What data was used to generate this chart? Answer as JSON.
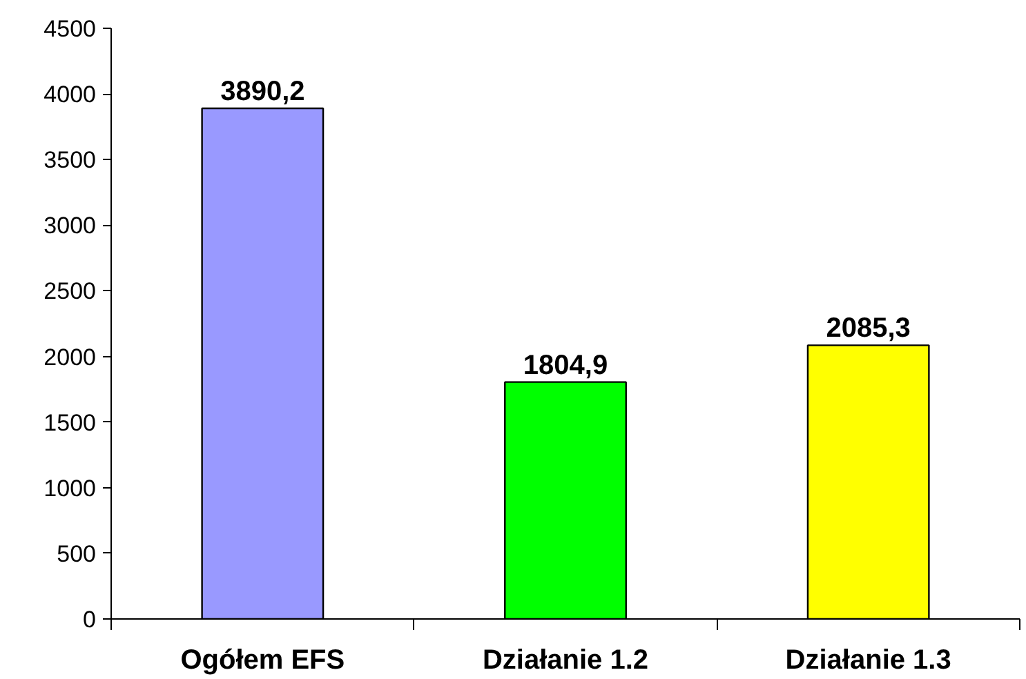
{
  "chart_data": {
    "type": "bar",
    "categories": [
      "Ogółem EFS",
      "Działanie 1.2",
      "Działanie 1.3"
    ],
    "values": [
      3890.2,
      1804.9,
      2085.3
    ],
    "colors": [
      "#9999ff",
      "#00ff00",
      "#ffff00"
    ],
    "value_labels": [
      "3890,2",
      "1804,9",
      "2085,3"
    ],
    "ylim": [
      0,
      4500
    ],
    "yticks": [
      0,
      500,
      1000,
      1500,
      2000,
      2500,
      3000,
      3500,
      4000,
      4500
    ],
    "grid": false
  }
}
